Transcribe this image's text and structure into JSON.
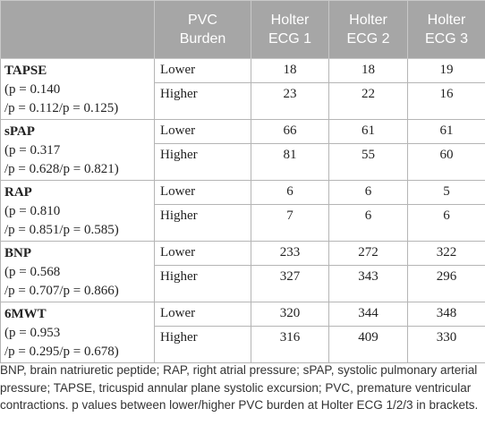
{
  "table": {
    "header": [
      [],
      [
        "PVC",
        "Burden"
      ],
      [
        "Holter",
        "ECG 1"
      ],
      [
        "Holter",
        "ECG 2"
      ],
      [
        "Holter",
        "ECG 3"
      ]
    ],
    "groups": [
      {
        "name": "TAPSE",
        "p_lines": [
          "(p = 0.140",
          "/p = 0.112/p = 0.125)"
        ],
        "rows": [
          [
            "Lower",
            18,
            18,
            19
          ],
          [
            "Higher",
            23,
            22,
            16
          ]
        ]
      },
      {
        "name": "sPAP",
        "p_lines": [
          "(p = 0.317",
          "/p = 0.628/p = 0.821)"
        ],
        "rows": [
          [
            "Lower",
            66,
            61,
            61
          ],
          [
            "Higher",
            81,
            55,
            60
          ]
        ]
      },
      {
        "name": "RAP",
        "p_lines": [
          "(p = 0.810",
          "/p = 0.851/p = 0.585)"
        ],
        "rows": [
          [
            "Lower",
            6,
            6,
            5
          ],
          [
            "Higher",
            7,
            6,
            6
          ]
        ]
      },
      {
        "name": "BNP",
        "p_lines": [
          "(p = 0.568",
          "/p = 0.707/p = 0.866)"
        ],
        "rows": [
          [
            "Lower",
            233,
            272,
            322
          ],
          [
            "Higher",
            327,
            343,
            296
          ]
        ]
      },
      {
        "name": "6MWT",
        "p_lines": [
          "(p = 0.953",
          "/p = 0.295/p = 0.678)"
        ],
        "rows": [
          [
            "Lower",
            320,
            344,
            348
          ],
          [
            "Higher",
            316,
            409,
            330
          ]
        ]
      }
    ]
  },
  "footnote": "BNP, brain natriuretic peptide; RAP, right atrial pressure; sPAP, systolic pulmonary arterial pressure; TAPSE, tricuspid annular plane systolic excursion; PVC, premature ventricular contractions. p values between lower/higher PVC burden at Holter ECG 1/2/3 in brackets."
}
